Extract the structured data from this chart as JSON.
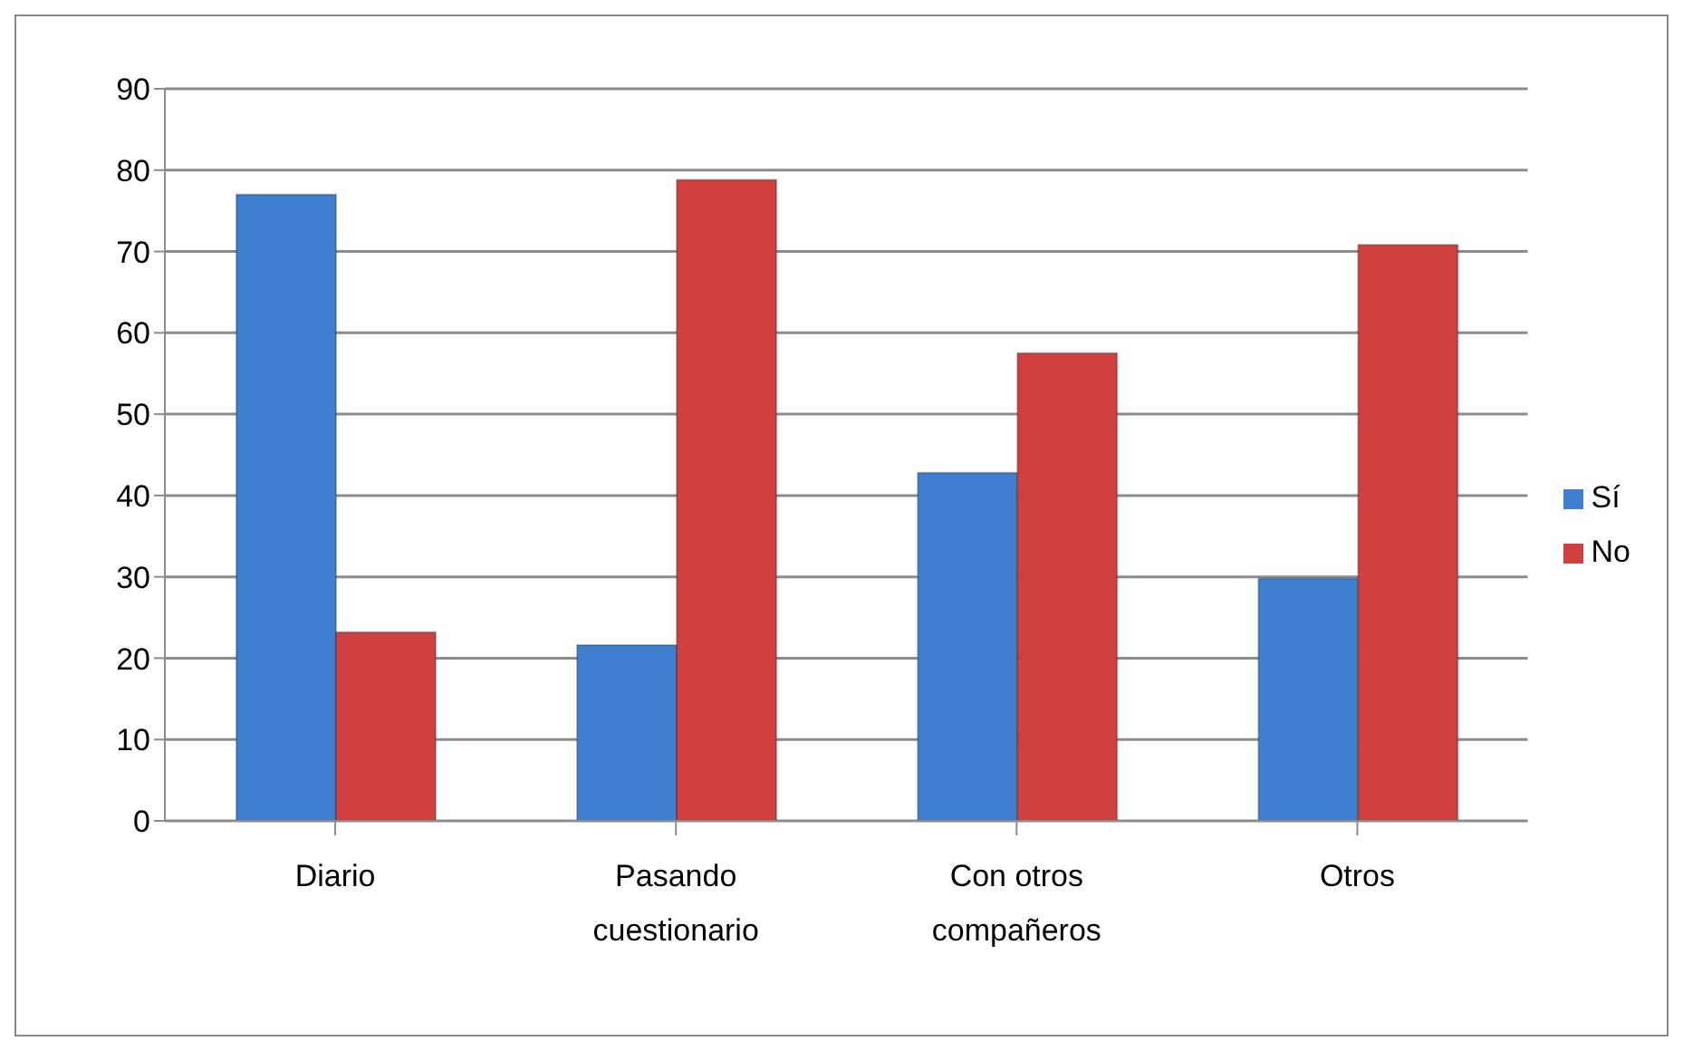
{
  "chart_data": {
    "type": "bar",
    "categories": [
      "Diario",
      "Pasando cuestionario",
      "Con otros compañeros",
      "Otros"
    ],
    "series": [
      {
        "name": "Sí",
        "color": "#3f7fcf",
        "values": [
          77,
          21.6,
          42.8,
          29.8
        ]
      },
      {
        "name": "No",
        "color": "#d0403f",
        "values": [
          23.2,
          78.8,
          57.5,
          70.8
        ]
      }
    ],
    "ylim": [
      0,
      90
    ],
    "yticks": [
      0,
      10,
      20,
      30,
      40,
      50,
      60,
      70,
      80,
      90
    ],
    "grid": "y",
    "legend": "right"
  }
}
